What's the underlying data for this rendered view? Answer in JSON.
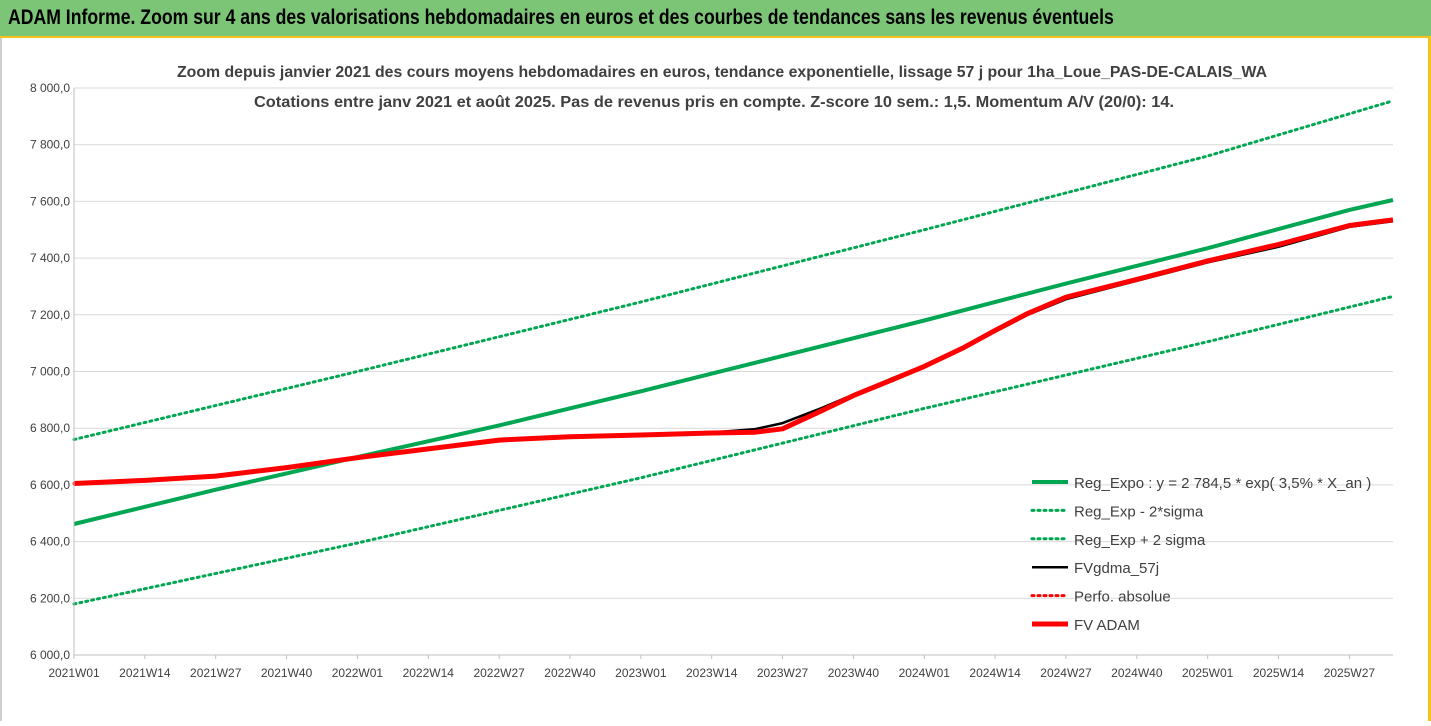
{
  "header": {
    "title": "ADAM Informe. Zoom sur 4 ans des valorisations hebdomadaires en euros et des courbes de tendances sans les revenus éventuels"
  },
  "colors": {
    "banner": "#7cc576",
    "banner_border": "#f3c21b",
    "green": "#00a651",
    "red": "#ff0000",
    "black": "#000000",
    "grid": "#d9d9d9"
  },
  "chart_data": {
    "type": "line",
    "title_line1": "Zoom depuis janvier 2021 des cours moyens hebdomadaires en euros, tendance exponentielle, lissage 57 j pour 1ha_Loue_PAS-DE-CALAIS_WA",
    "title_line2": "Cotations entre janv 2021 et août 2025. Pas de revenus pris en compte. Z-score 10 sem.: 1,5. Momentum A/V (20/0): 14.",
    "xlabel": "",
    "ylabel": "",
    "ylim": [
      6000,
      8000
    ],
    "yticks": [
      "8 000,0",
      "7 800,0",
      "7 600,0",
      "7 400,0",
      "7 200,0",
      "7 000,0",
      "6 800,0",
      "6 600,0",
      "6 400,0",
      "6 200,0",
      "6 000,0"
    ],
    "ytick_values": [
      8000,
      7800,
      7600,
      7400,
      7200,
      7000,
      6800,
      6600,
      6400,
      6200,
      6000
    ],
    "x_range": [
      0,
      242
    ],
    "xticks": [
      {
        "label": "2021W01",
        "index": 0
      },
      {
        "label": "2021W14",
        "index": 13
      },
      {
        "label": "2021W27",
        "index": 26
      },
      {
        "label": "2021W40",
        "index": 39
      },
      {
        "label": "2022W01",
        "index": 52
      },
      {
        "label": "2022W14",
        "index": 65
      },
      {
        "label": "2022W27",
        "index": 78
      },
      {
        "label": "2022W40",
        "index": 91
      },
      {
        "label": "2023W01",
        "index": 104
      },
      {
        "label": "2023W14",
        "index": 117
      },
      {
        "label": "2023W27",
        "index": 130
      },
      {
        "label": "2023W40",
        "index": 143
      },
      {
        "label": "2024W01",
        "index": 156
      },
      {
        "label": "2024W14",
        "index": 169
      },
      {
        "label": "2024W27",
        "index": 182
      },
      {
        "label": "2024W40",
        "index": 195
      },
      {
        "label": "2025W01",
        "index": 208
      },
      {
        "label": "2025W14",
        "index": 221
      },
      {
        "label": "2025W27",
        "index": 234
      }
    ],
    "grid": "horizontal",
    "legend_position": "bottom-right",
    "series": [
      {
        "name": "Reg_Expo : y = 2 784,5 * exp( 3,5% *  X_an )",
        "color": "#00a651",
        "style": "solid",
        "points": [
          [
            0,
            6462
          ],
          [
            26,
            6583
          ],
          [
            52,
            6698
          ],
          [
            78,
            6810
          ],
          [
            104,
            6930
          ],
          [
            130,
            7055
          ],
          [
            156,
            7180
          ],
          [
            182,
            7310
          ],
          [
            208,
            7435
          ],
          [
            234,
            7570
          ],
          [
            242,
            7605
          ]
        ]
      },
      {
        "name": "Reg_Exp - 2*sigma",
        "color": "#00a651",
        "style": "dotted",
        "points": [
          [
            0,
            6180
          ],
          [
            52,
            6395
          ],
          [
            104,
            6625
          ],
          [
            156,
            6870
          ],
          [
            208,
            7105
          ],
          [
            242,
            7265
          ]
        ]
      },
      {
        "name": "Reg_Exp + 2 sigma",
        "color": "#00a651",
        "style": "dotted",
        "points": [
          [
            0,
            6760
          ],
          [
            52,
            7000
          ],
          [
            104,
            7245
          ],
          [
            156,
            7500
          ],
          [
            208,
            7760
          ],
          [
            242,
            7955
          ]
        ]
      },
      {
        "name": "FVgdma_57j",
        "color": "#000000",
        "style": "solid",
        "points": [
          [
            0,
            6605
          ],
          [
            13,
            6615
          ],
          [
            26,
            6630
          ],
          [
            39,
            6660
          ],
          [
            52,
            6695
          ],
          [
            65,
            6725
          ],
          [
            78,
            6755
          ],
          [
            91,
            6768
          ],
          [
            104,
            6775
          ],
          [
            117,
            6785
          ],
          [
            125,
            6797
          ],
          [
            130,
            6818
          ],
          [
            137,
            6870
          ],
          [
            143,
            6918
          ],
          [
            150,
            6975
          ],
          [
            156,
            7020
          ],
          [
            163,
            7080
          ],
          [
            169,
            7140
          ],
          [
            175,
            7200
          ],
          [
            182,
            7255
          ],
          [
            195,
            7320
          ],
          [
            208,
            7385
          ],
          [
            221,
            7440
          ],
          [
            234,
            7510
          ],
          [
            242,
            7530
          ]
        ]
      },
      {
        "name": "Perfo. absolue",
        "color": "#ff0000",
        "style": "dotted",
        "points": [
          [
            0,
            6605
          ],
          [
            13,
            6616
          ],
          [
            26,
            6631
          ],
          [
            39,
            6661
          ],
          [
            52,
            6696
          ],
          [
            65,
            6727
          ],
          [
            78,
            6758
          ],
          [
            91,
            6770
          ],
          [
            104,
            6776
          ],
          [
            117,
            6783
          ],
          [
            125,
            6786
          ],
          [
            130,
            6798
          ],
          [
            137,
            6860
          ],
          [
            143,
            6915
          ],
          [
            150,
            6970
          ],
          [
            156,
            7018
          ],
          [
            163,
            7082
          ],
          [
            169,
            7145
          ],
          [
            175,
            7205
          ],
          [
            182,
            7262
          ],
          [
            195,
            7325
          ],
          [
            208,
            7390
          ],
          [
            221,
            7448
          ],
          [
            234,
            7515
          ],
          [
            242,
            7535
          ]
        ]
      },
      {
        "name": "FV ADAM",
        "color": "#ff0000",
        "style": "thick",
        "points": [
          [
            0,
            6605
          ],
          [
            13,
            6616
          ],
          [
            26,
            6631
          ],
          [
            39,
            6661
          ],
          [
            52,
            6696
          ],
          [
            65,
            6727
          ],
          [
            78,
            6758
          ],
          [
            91,
            6770
          ],
          [
            104,
            6776
          ],
          [
            117,
            6783
          ],
          [
            125,
            6786
          ],
          [
            130,
            6798
          ],
          [
            137,
            6860
          ],
          [
            143,
            6915
          ],
          [
            150,
            6970
          ],
          [
            156,
            7018
          ],
          [
            163,
            7082
          ],
          [
            169,
            7145
          ],
          [
            175,
            7205
          ],
          [
            182,
            7262
          ],
          [
            195,
            7325
          ],
          [
            208,
            7390
          ],
          [
            221,
            7448
          ],
          [
            234,
            7515
          ],
          [
            242,
            7535
          ]
        ]
      }
    ]
  }
}
